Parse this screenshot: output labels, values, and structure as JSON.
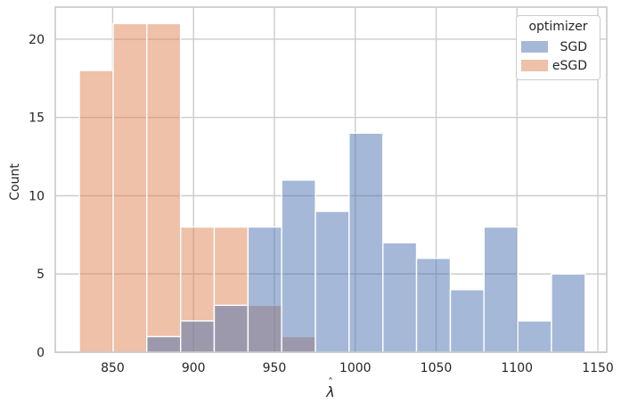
{
  "chart_data": {
    "type": "histogram",
    "title": "",
    "xlabel": "λ̂",
    "xlabel_base": "λ",
    "xlabel_accent": "ˆ",
    "ylabel": "Count",
    "bin_edges": [
      829.4,
      850.3,
      871.1,
      892.0,
      912.8,
      933.7,
      954.5,
      975.4,
      996.2,
      1017.1,
      1037.9,
      1058.8,
      1079.6,
      1100.5,
      1121.3,
      1142.2
    ],
    "series": [
      {
        "name": "SGD",
        "color": "#4C72B0",
        "counts": [
          0,
          0,
          1,
          2,
          3,
          8,
          11,
          9,
          14,
          7,
          6,
          4,
          8,
          2,
          5
        ]
      },
      {
        "name": "eSGD",
        "color": "#DD8452",
        "counts": [
          18,
          21,
          21,
          8,
          8,
          3,
          1,
          0,
          0,
          0,
          0,
          0,
          0,
          0,
          0
        ]
      }
    ],
    "fill_alpha": 0.5,
    "bar_edge_color": "#ffffff",
    "multiple": "layer",
    "x_ticks": [
      850,
      900,
      950,
      1000,
      1050,
      1100,
      1150
    ],
    "y_ticks": [
      0,
      5,
      10,
      15,
      20
    ],
    "xlim": [
      814.5,
      1155.5
    ],
    "ylim": [
      0,
      22.05
    ],
    "grid": true,
    "grid_color": "#cccccc",
    "spine_color": "#c8c8c8",
    "text_color": "#262626",
    "legend": {
      "title": "optimizer",
      "position": "upper right",
      "items": [
        {
          "label": "SGD",
          "color": "#4C72B0"
        },
        {
          "label": "eSGD",
          "color": "#DD8452"
        }
      ]
    }
  }
}
